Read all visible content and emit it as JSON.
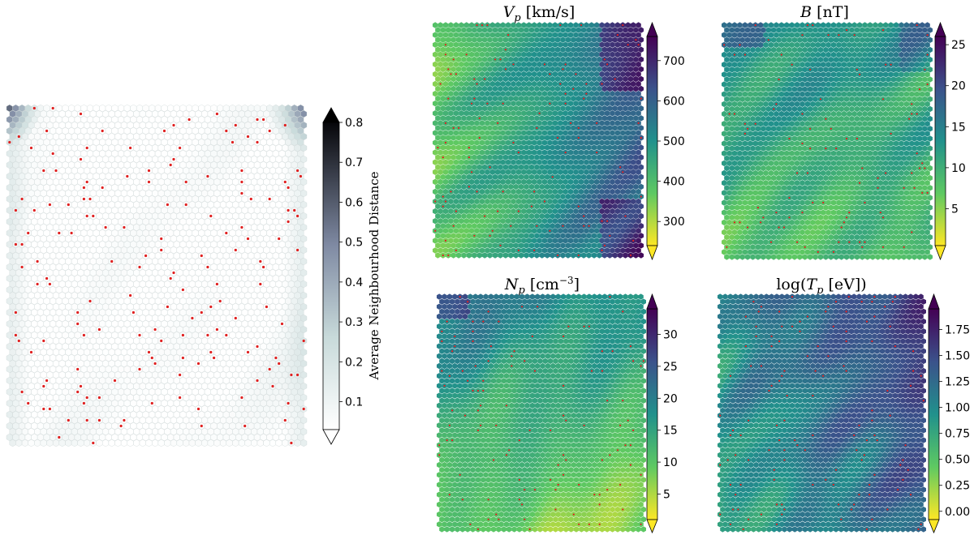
{
  "chart_data": [
    {
      "type": "heatmap",
      "grid": "hexagonal self-organizing map",
      "colormap": "bone_r",
      "title": "",
      "colorbar_label": "Average Neighbourhood Distance",
      "colorbar_ticks": [
        "0.1",
        "0.2",
        "0.3",
        "0.4",
        "0.5",
        "0.6",
        "0.7",
        "0.8"
      ],
      "colorbar_range": [
        0.03,
        0.8
      ],
      "colorbar_extend": "both",
      "marker_color": "#e02020"
    },
    {
      "type": "heatmap",
      "grid": "hexagonal self-organizing map",
      "colormap": "viridis_r",
      "title_symbol": "V",
      "title_sub": "p",
      "title_unit": " [km/s]",
      "colorbar_ticks": [
        "300",
        "400",
        "500",
        "600",
        "700"
      ],
      "colorbar_range": [
        240,
        760
      ],
      "colorbar_extend": "both",
      "marker_color": "#e02020"
    },
    {
      "type": "heatmap",
      "grid": "hexagonal self-organizing map",
      "colormap": "viridis_r",
      "title_symbol": "B",
      "title_unit": " [nT]",
      "colorbar_ticks": [
        "5",
        "10",
        "15",
        "20",
        "25"
      ],
      "colorbar_range": [
        0.5,
        26
      ],
      "colorbar_extend": "both",
      "marker_color": "#e02020"
    },
    {
      "type": "heatmap",
      "grid": "hexagonal self-organizing map",
      "colormap": "viridis_r",
      "title_symbol": "N",
      "title_sub": "p",
      "title_unit": " [cm",
      "title_sup": "−3",
      "title_close": "]",
      "colorbar_ticks": [
        "5",
        "10",
        "15",
        "20",
        "25",
        "30"
      ],
      "colorbar_range": [
        1,
        34
      ],
      "colorbar_extend": "both",
      "marker_color": "#e02020"
    },
    {
      "type": "heatmap",
      "grid": "hexagonal self-organizing map",
      "colormap": "viridis_r",
      "title_prefix": "log(",
      "title_symbol": "T",
      "title_sub": "p",
      "title_unit": " [eV])",
      "colorbar_ticks": [
        "0.00",
        "0.25",
        "0.50",
        "0.75",
        "1.00",
        "1.25",
        "1.50",
        "1.75"
      ],
      "colorbar_range": [
        -0.08,
        1.95
      ],
      "colorbar_extend": "both",
      "marker_color": "#e02020"
    }
  ]
}
